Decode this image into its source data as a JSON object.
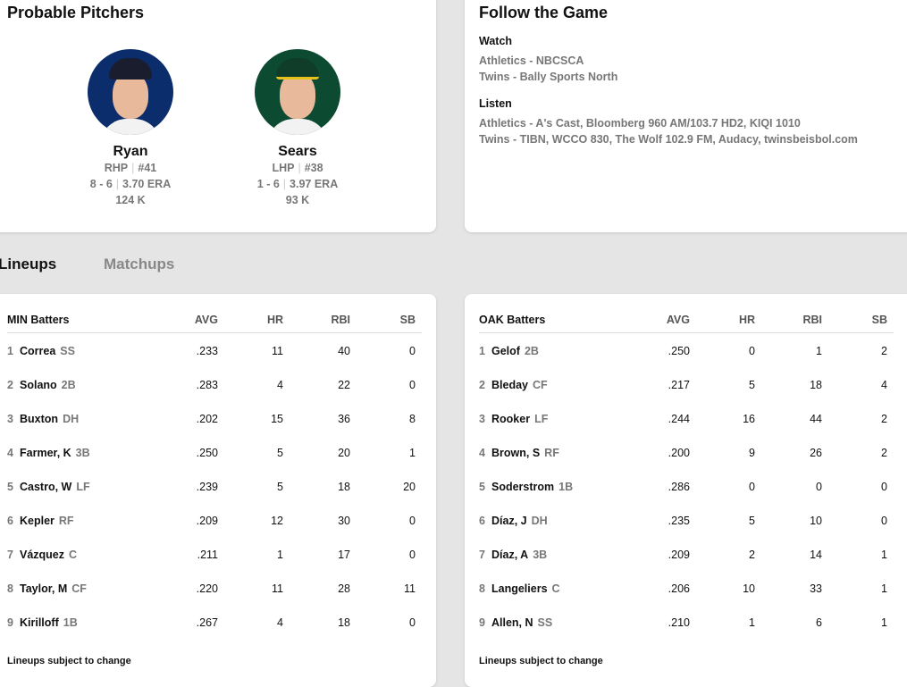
{
  "probable_pitchers": {
    "title": "Probable Pitchers",
    "pitchers": [
      {
        "name": "Ryan",
        "throws": "RHP",
        "number": "#41",
        "record": "8 - 6",
        "era": "3.70 ERA",
        "strikeouts": "124 K",
        "bg_color": "#0c2d6b",
        "cap_color": "#1a1d2e"
      },
      {
        "name": "Sears",
        "throws": "LHP",
        "number": "#38",
        "record": "1 - 6",
        "era": "3.97 ERA",
        "strikeouts": "93 K",
        "bg_color": "#0d4a32",
        "cap_color": "#0f3d2a"
      }
    ]
  },
  "follow": {
    "title": "Follow the Game",
    "watch_label": "Watch",
    "watch": [
      "Athletics - NBCSCA",
      "Twins - Bally Sports North"
    ],
    "listen_label": "Listen",
    "listen": [
      "Athletics - A's Cast, Bloomberg 960 AM/103.7 HD2, KIQI 1010",
      "Twins - TIBN, WCCO 830, The Wolf 102.9 FM, Audacy, twinsbeisbol.com"
    ]
  },
  "tabs": [
    {
      "label": "Lineups",
      "active": true
    },
    {
      "label": "Matchups",
      "active": false
    }
  ],
  "lineups": [
    {
      "team": "MIN Batters",
      "columns": [
        "AVG",
        "HR",
        "RBI",
        "SB"
      ],
      "footer": "Lineups subject to change",
      "batters": [
        [
          "1",
          "Correa",
          "SS",
          ".233",
          "11",
          "40",
          "0"
        ],
        [
          "2",
          "Solano",
          "2B",
          ".283",
          "4",
          "22",
          "0"
        ],
        [
          "3",
          "Buxton",
          "DH",
          ".202",
          "15",
          "36",
          "8"
        ],
        [
          "4",
          "Farmer, K",
          "3B",
          ".250",
          "5",
          "20",
          "1"
        ],
        [
          "5",
          "Castro, W",
          "LF",
          ".239",
          "5",
          "18",
          "20"
        ],
        [
          "6",
          "Kepler",
          "RF",
          ".209",
          "12",
          "30",
          "0"
        ],
        [
          "7",
          "Vázquez",
          "C",
          ".211",
          "1",
          "17",
          "0"
        ],
        [
          "8",
          "Taylor, M",
          "CF",
          ".220",
          "11",
          "28",
          "11"
        ],
        [
          "9",
          "Kirilloff",
          "1B",
          ".267",
          "4",
          "18",
          "0"
        ]
      ]
    },
    {
      "team": "OAK Batters",
      "columns": [
        "AVG",
        "HR",
        "RBI",
        "SB"
      ],
      "footer": "Lineups subject to change",
      "batters": [
        [
          "1",
          "Gelof",
          "2B",
          ".250",
          "0",
          "1",
          "2"
        ],
        [
          "2",
          "Bleday",
          "CF",
          ".217",
          "5",
          "18",
          "4"
        ],
        [
          "3",
          "Rooker",
          "LF",
          ".244",
          "16",
          "44",
          "2"
        ],
        [
          "4",
          "Brown, S",
          "RF",
          ".200",
          "9",
          "26",
          "2"
        ],
        [
          "5",
          "Soderstrom",
          "1B",
          ".286",
          "0",
          "0",
          "0"
        ],
        [
          "6",
          "Díaz, J",
          "DH",
          ".235",
          "5",
          "10",
          "0"
        ],
        [
          "7",
          "Díaz, A",
          "3B",
          ".209",
          "2",
          "14",
          "1"
        ],
        [
          "8",
          "Langeliers",
          "C",
          ".206",
          "10",
          "33",
          "1"
        ],
        [
          "9",
          "Allen, N",
          "SS",
          ".210",
          "1",
          "6",
          "1"
        ]
      ]
    }
  ]
}
